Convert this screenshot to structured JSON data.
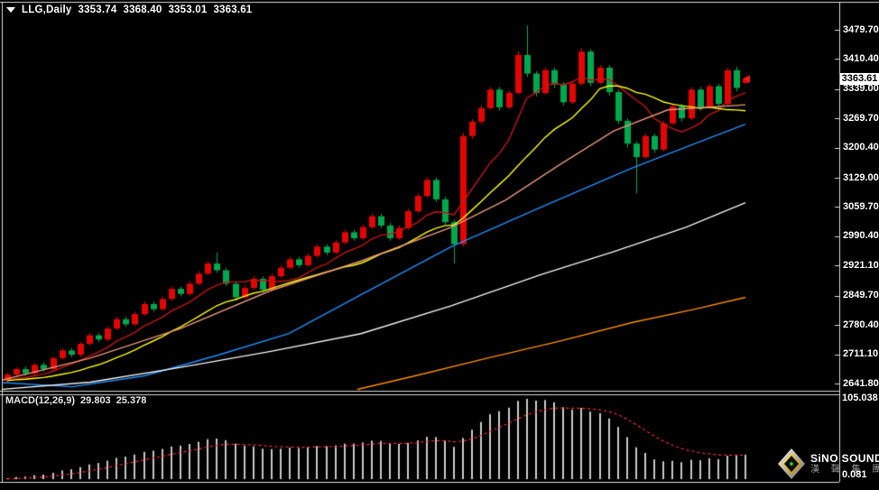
{
  "window": {
    "symbol_line": {
      "dropdown_icon": "triangle-down",
      "symbol": "LLG,Daily",
      "open": "3353.74",
      "high": "3368.40",
      "low": "3353.01",
      "close": "3363.61"
    }
  },
  "price_axis": {
    "ticks": [
      "3479.70",
      "3410.40",
      "3339.00",
      "3269.70",
      "3200.40",
      "3129.00",
      "3059.70",
      "2990.40",
      "2921.10",
      "2849.70",
      "2780.40",
      "2711.10",
      "2641.80"
    ],
    "current_price": "3363.61"
  },
  "macd_panel": {
    "label": "MACD(12,26,9)",
    "macd_value": "29.803",
    "signal_value": "25.378",
    "scale_max": "105.038",
    "scale_min": "0.081"
  },
  "logo": {
    "brand": "SiNO SOUND",
    "brand_cn": "漢 聲 集 團"
  },
  "colors": {
    "background": "#000000",
    "frame": "#D8D8D8",
    "text": "#FFFFFF",
    "up_candle": "#E60400",
    "down_candle": "#00A94C",
    "price_tag_bg": "#FFFFFF",
    "price_tag_text": "#000000",
    "arrow": "#FF1A1A",
    "macd_histogram": "#C8C8C8",
    "macd_signal": "#FF2A2A"
  },
  "chart_data": {
    "type": "candlestick",
    "symbol": "LLG",
    "timeframe": "Daily",
    "ylim": [
      2641.8,
      3479.7
    ],
    "legend_position": "none",
    "grid": false,
    "ohlc": [
      [
        2648,
        2668,
        2642,
        2663
      ],
      [
        2663,
        2680,
        2658,
        2676
      ],
      [
        2676,
        2682,
        2660,
        2666
      ],
      [
        2666,
        2690,
        2662,
        2686
      ],
      [
        2686,
        2692,
        2670,
        2676
      ],
      [
        2676,
        2706,
        2672,
        2702
      ],
      [
        2702,
        2726,
        2698,
        2720
      ],
      [
        2720,
        2726,
        2704,
        2710
      ],
      [
        2710,
        2740,
        2706,
        2736
      ],
      [
        2736,
        2762,
        2732,
        2756
      ],
      [
        2756,
        2762,
        2740,
        2746
      ],
      [
        2746,
        2778,
        2742,
        2772
      ],
      [
        2772,
        2800,
        2768,
        2794
      ],
      [
        2794,
        2800,
        2776,
        2782
      ],
      [
        2782,
        2812,
        2778,
        2806
      ],
      [
        2806,
        2836,
        2802,
        2830
      ],
      [
        2830,
        2836,
        2812,
        2818
      ],
      [
        2818,
        2848,
        2814,
        2842
      ],
      [
        2842,
        2872,
        2838,
        2866
      ],
      [
        2866,
        2872,
        2848,
        2854
      ],
      [
        2854,
        2884,
        2850,
        2878
      ],
      [
        2878,
        2908,
        2874,
        2902
      ],
      [
        2902,
        2932,
        2898,
        2926
      ],
      [
        2926,
        2952,
        2904,
        2910
      ],
      [
        2910,
        2916,
        2872,
        2878
      ],
      [
        2878,
        2884,
        2838,
        2846
      ],
      [
        2846,
        2874,
        2842,
        2868
      ],
      [
        2868,
        2896,
        2864,
        2890
      ],
      [
        2890,
        2896,
        2858,
        2864
      ],
      [
        2864,
        2902,
        2860,
        2896
      ],
      [
        2896,
        2922,
        2892,
        2916
      ],
      [
        2916,
        2942,
        2912,
        2936
      ],
      [
        2936,
        2942,
        2916,
        2922
      ],
      [
        2922,
        2950,
        2918,
        2944
      ],
      [
        2944,
        2972,
        2940,
        2966
      ],
      [
        2966,
        2972,
        2946,
        2952
      ],
      [
        2952,
        2982,
        2948,
        2976
      ],
      [
        2976,
        3006,
        2972,
        3000
      ],
      [
        3000,
        3006,
        2980,
        2986
      ],
      [
        2986,
        3018,
        2982,
        3012
      ],
      [
        3012,
        3044,
        3008,
        3038
      ],
      [
        3038,
        3044,
        3010,
        3016
      ],
      [
        3016,
        3022,
        2980,
        2986
      ],
      [
        2986,
        3016,
        2982,
        3010
      ],
      [
        3010,
        3056,
        3006,
        3050
      ],
      [
        3050,
        3092,
        3046,
        3086
      ],
      [
        3086,
        3130,
        3082,
        3124
      ],
      [
        3124,
        3130,
        3072,
        3078
      ],
      [
        3078,
        3084,
        3018,
        3024
      ],
      [
        3024,
        3030,
        2926,
        2972
      ],
      [
        2972,
        3236,
        2966,
        3228
      ],
      [
        3228,
        3268,
        3222,
        3262
      ],
      [
        3262,
        3300,
        3256,
        3294
      ],
      [
        3294,
        3344,
        3290,
        3338
      ],
      [
        3338,
        3344,
        3288,
        3296
      ],
      [
        3296,
        3336,
        3292,
        3330
      ],
      [
        3330,
        3428,
        3326,
        3420
      ],
      [
        3420,
        3490,
        3368,
        3376
      ],
      [
        3376,
        3382,
        3322,
        3330
      ],
      [
        3330,
        3390,
        3326,
        3384
      ],
      [
        3384,
        3390,
        3342,
        3350
      ],
      [
        3350,
        3356,
        3300,
        3308
      ],
      [
        3308,
        3358,
        3304,
        3352
      ],
      [
        3352,
        3436,
        3348,
        3428
      ],
      [
        3428,
        3434,
        3346,
        3354
      ],
      [
        3354,
        3396,
        3350,
        3390
      ],
      [
        3390,
        3396,
        3324,
        3332
      ],
      [
        3332,
        3338,
        3256,
        3264
      ],
      [
        3264,
        3270,
        3200,
        3210
      ],
      [
        3210,
        3216,
        3092,
        3178
      ],
      [
        3178,
        3234,
        3174,
        3228
      ],
      [
        3228,
        3234,
        3188,
        3196
      ],
      [
        3196,
        3264,
        3192,
        3258
      ],
      [
        3258,
        3304,
        3254,
        3298
      ],
      [
        3298,
        3304,
        3262,
        3270
      ],
      [
        3270,
        3344,
        3266,
        3338
      ],
      [
        3338,
        3344,
        3288,
        3296
      ],
      [
        3296,
        3352,
        3292,
        3346
      ],
      [
        3346,
        3352,
        3296,
        3304
      ],
      [
        3304,
        3390,
        3300,
        3384
      ],
      [
        3384,
        3392,
        3334,
        3342
      ],
      [
        3353.74,
        3368.4,
        3353.01,
        3363.61
      ]
    ],
    "overlays": {
      "ma_fast": {
        "name": "ma-fast-red",
        "color": "#C81414",
        "period": 8
      },
      "ma_mid": {
        "name": "ma-mid-yellow",
        "color": "#FFFF00",
        "period": 16
      },
      "trend_lines": [
        {
          "name": "ma-salmon",
          "color": "#E9967A",
          "points": [
            [
              2,
              2650
            ],
            [
              100,
              2702
            ],
            [
              200,
              2772
            ],
            [
              300,
              2862
            ],
            [
              400,
              2932
            ],
            [
              500,
              3012
            ],
            [
              560,
              3076
            ],
            [
              620,
              3160
            ],
            [
              680,
              3240
            ],
            [
              740,
              3290
            ],
            [
              826,
              3302
            ]
          ]
        },
        {
          "name": "ma-blue",
          "color": "#1E90FF",
          "points": [
            [
              2,
              2644
            ],
            [
              80,
              2634
            ],
            [
              160,
              2660
            ],
            [
              240,
              2708
            ],
            [
              320,
              2760
            ],
            [
              400,
              2852
            ],
            [
              500,
              2966
            ],
            [
              600,
              3060
            ],
            [
              700,
              3152
            ],
            [
              770,
              3210
            ],
            [
              826,
              3256
            ]
          ]
        },
        {
          "name": "ma-white",
          "color": "#F5F5F5",
          "points": [
            [
              2,
              2628
            ],
            [
              100,
              2645
            ],
            [
              200,
              2680
            ],
            [
              300,
              2718
            ],
            [
              400,
              2760
            ],
            [
              500,
              2826
            ],
            [
              600,
              2900
            ],
            [
              680,
              2954
            ],
            [
              760,
              3012
            ],
            [
              826,
              3070
            ]
          ]
        },
        {
          "name": "ma-orange",
          "color": "#FF8C00",
          "points": [
            [
              396,
              2628
            ],
            [
              460,
              2660
            ],
            [
              540,
              2702
            ],
            [
              620,
              2742
            ],
            [
              700,
              2786
            ],
            [
              770,
              2818
            ],
            [
              826,
              2846
            ]
          ]
        }
      ]
    },
    "macd": {
      "params": [
        12,
        26,
        9
      ],
      "current_macd": 29.803,
      "current_signal": 25.378,
      "ylim": [
        0.081,
        105.038
      ],
      "histogram_color": "#C8C8C8",
      "signal_color": "#FF2A2A",
      "signal_style": "dashed"
    }
  }
}
